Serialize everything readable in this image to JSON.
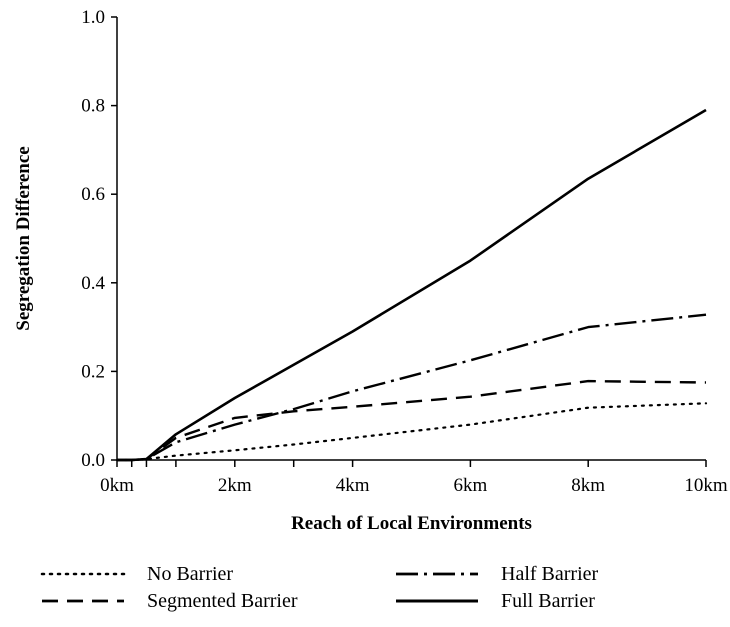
{
  "chart_data": {
    "type": "line",
    "title": "",
    "xlabel": "Reach of Local Environments",
    "ylabel": "Segregation Difference",
    "xlim": [
      0,
      10
    ],
    "ylim": [
      0,
      1.0
    ],
    "x_ticks": [
      {
        "value": 0,
        "label": "0km"
      },
      {
        "value": 2,
        "label": "2km"
      },
      {
        "value": 4,
        "label": "4km"
      },
      {
        "value": 6,
        "label": "6km"
      },
      {
        "value": 8,
        "label": "8km"
      },
      {
        "value": 10,
        "label": "10km"
      }
    ],
    "x_minor_ticks": [
      0.25,
      0.5,
      1,
      3
    ],
    "y_ticks": [
      {
        "value": 0.0,
        "label": "0.0"
      },
      {
        "value": 0.2,
        "label": "0.2"
      },
      {
        "value": 0.4,
        "label": "0.4"
      },
      {
        "value": 0.6,
        "label": "0.6"
      },
      {
        "value": 0.8,
        "label": "0.8"
      },
      {
        "value": 1.0,
        "label": "1.0"
      }
    ],
    "grid": false,
    "legend_position": "bottom",
    "x": [
      0,
      0.25,
      0.5,
      1,
      2,
      3,
      4,
      6,
      8,
      10
    ],
    "series": [
      {
        "name": "No Barrier",
        "style": "dotted",
        "values": [
          0.0,
          0.0,
          0.002,
          0.01,
          0.022,
          0.035,
          0.05,
          0.08,
          0.118,
          0.128
        ]
      },
      {
        "name": "Half Barrier",
        "style": "dashdot",
        "values": [
          0.0,
          0.0,
          0.002,
          0.04,
          0.08,
          0.115,
          0.155,
          0.225,
          0.3,
          0.328
        ]
      },
      {
        "name": "Segmented Barrier",
        "style": "dashed",
        "values": [
          0.0,
          0.0,
          0.002,
          0.05,
          0.095,
          0.11,
          0.12,
          0.143,
          0.178,
          0.175
        ]
      },
      {
        "name": "Full Barrier",
        "style": "solid",
        "values": [
          0.0,
          0.0,
          0.002,
          0.058,
          0.14,
          0.215,
          0.29,
          0.45,
          0.635,
          0.79
        ]
      }
    ]
  }
}
